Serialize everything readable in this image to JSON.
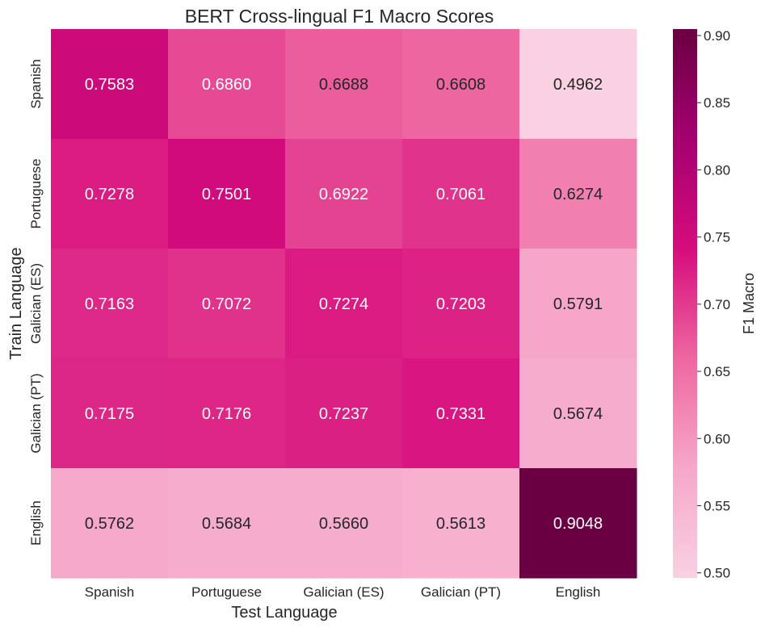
{
  "chart_data": {
    "type": "heatmap",
    "title": "BERT Cross-lingual F1 Macro Scores",
    "xlabel": "Test Language",
    "ylabel": "Train Language",
    "x_categories": [
      "Spanish",
      "Portuguese",
      "Galician (ES)",
      "Galician (PT)",
      "English"
    ],
    "y_categories": [
      "Spanish",
      "Portuguese",
      "Galician (ES)",
      "Galician (PT)",
      "English"
    ],
    "values": [
      [
        0.7583,
        0.686,
        0.6688,
        0.6608,
        0.4962
      ],
      [
        0.7278,
        0.7501,
        0.6922,
        0.7061,
        0.6274
      ],
      [
        0.7163,
        0.7072,
        0.7274,
        0.7203,
        0.5791
      ],
      [
        0.7175,
        0.7176,
        0.7237,
        0.7331,
        0.5674
      ],
      [
        0.5762,
        0.5684,
        0.566,
        0.5613,
        0.9048
      ]
    ],
    "value_labels": [
      [
        "0.7583",
        "0.6860",
        "0.6688",
        "0.6608",
        "0.4962"
      ],
      [
        "0.7278",
        "0.7501",
        "0.6922",
        "0.7061",
        "0.6274"
      ],
      [
        "0.7163",
        "0.7072",
        "0.7274",
        "0.7203",
        "0.5791"
      ],
      [
        "0.7175",
        "0.7176",
        "0.7237",
        "0.7331",
        "0.5674"
      ],
      [
        "0.5762",
        "0.5684",
        "0.5660",
        "0.5613",
        "0.9048"
      ]
    ],
    "colorbar": {
      "label": "F1 Macro",
      "vmin": 0.4962,
      "vmax": 0.9048,
      "ticks": [
        0.5,
        0.55,
        0.6,
        0.65,
        0.7,
        0.75,
        0.8,
        0.85,
        0.9
      ],
      "tick_labels": [
        "0.50",
        "0.55",
        "0.60",
        "0.65",
        "0.70",
        "0.75",
        "0.80",
        "0.85",
        "0.90"
      ]
    },
    "colormap": [
      "#f9d1e2",
      "#f6a7c9",
      "#ee67a0",
      "#d60c7c",
      "#a50070",
      "#6a0041"
    ]
  }
}
